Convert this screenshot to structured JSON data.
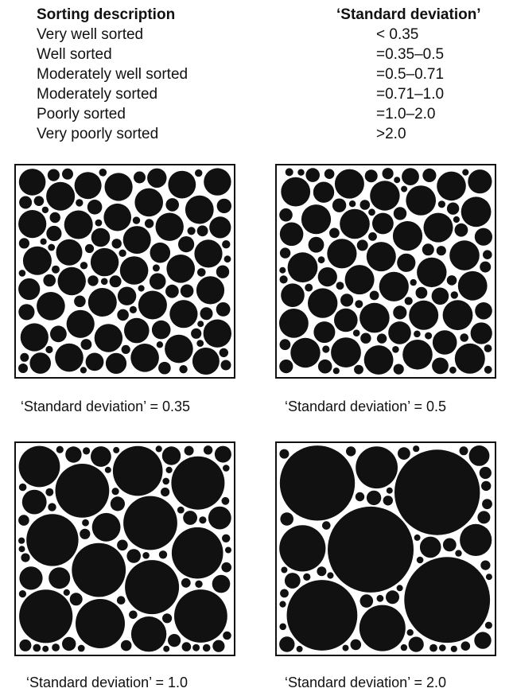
{
  "table": {
    "header_description": "Sorting description",
    "header_sd": "‘Standard deviation’",
    "rows": [
      {
        "description": "Very well sorted",
        "sd": "< 0.35"
      },
      {
        "description": "Well sorted",
        "sd": "=0.35–0.5"
      },
      {
        "description": "Moderately well sorted",
        "sd": "=0.5–0.71"
      },
      {
        "description": "Moderately sorted",
        "sd": "=0.71–1.0"
      },
      {
        "description": "Poorly sorted",
        "sd": "=1.0–2.0"
      },
      {
        "description": "Very poorly sorted",
        "sd": ">2.0"
      }
    ]
  },
  "panels": [
    {
      "caption": "‘Standard deviation’ = 0.35",
      "sd": 0.35
    },
    {
      "caption": "‘Standard deviation’ = 0.5",
      "sd": 0.5
    },
    {
      "caption": "‘Standard deviation’ = 1.0",
      "sd": 1.0
    },
    {
      "caption": "‘Standard deviation’ = 2.0",
      "sd": 2.0
    }
  ],
  "colors": {
    "grain": "#111111",
    "background": "#ffffff",
    "border": "#111111"
  }
}
